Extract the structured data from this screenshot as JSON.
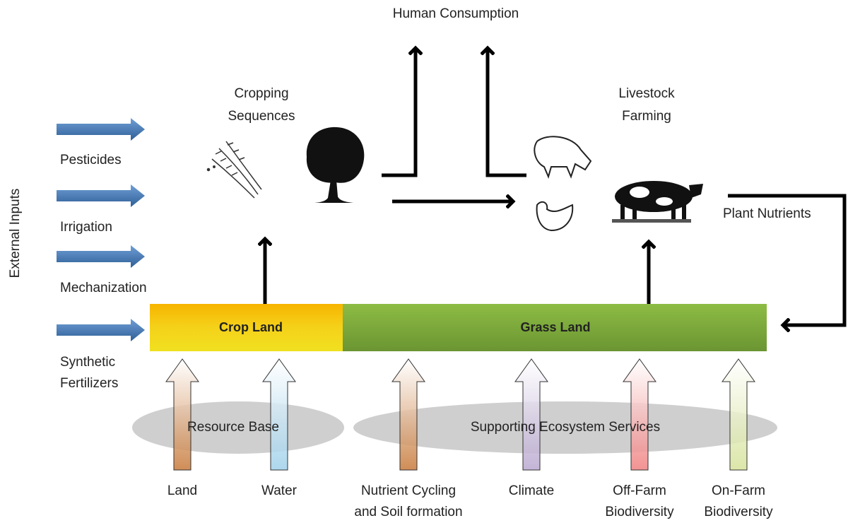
{
  "human_consumption": "Human Consumption",
  "cropping": [
    "Cropping",
    "Sequences"
  ],
  "livestock": [
    "Livestock",
    "Farming"
  ],
  "external_inputs": "External Inputs",
  "inputs": [
    [
      "Pesticides"
    ],
    [
      "Irrigation"
    ],
    [
      "Mechanization"
    ],
    [
      "Synthetic",
      "Fertilizers"
    ]
  ],
  "crop_land": "Crop Land",
  "grass_land": "Grass Land",
  "plant_nutrients": "Plant Nutrients",
  "resource_base": "Resource Base",
  "ecosystem_services": "Supporting Ecosystem Services",
  "bottom_labels": [
    [
      "Land"
    ],
    [
      "Water"
    ],
    [
      "Nutrient Cycling",
      "and Soil formation"
    ],
    [
      "Climate"
    ],
    [
      "Off-Farm",
      "Biodiversity"
    ],
    [
      "On-Farm",
      "Biodiversity"
    ]
  ]
}
